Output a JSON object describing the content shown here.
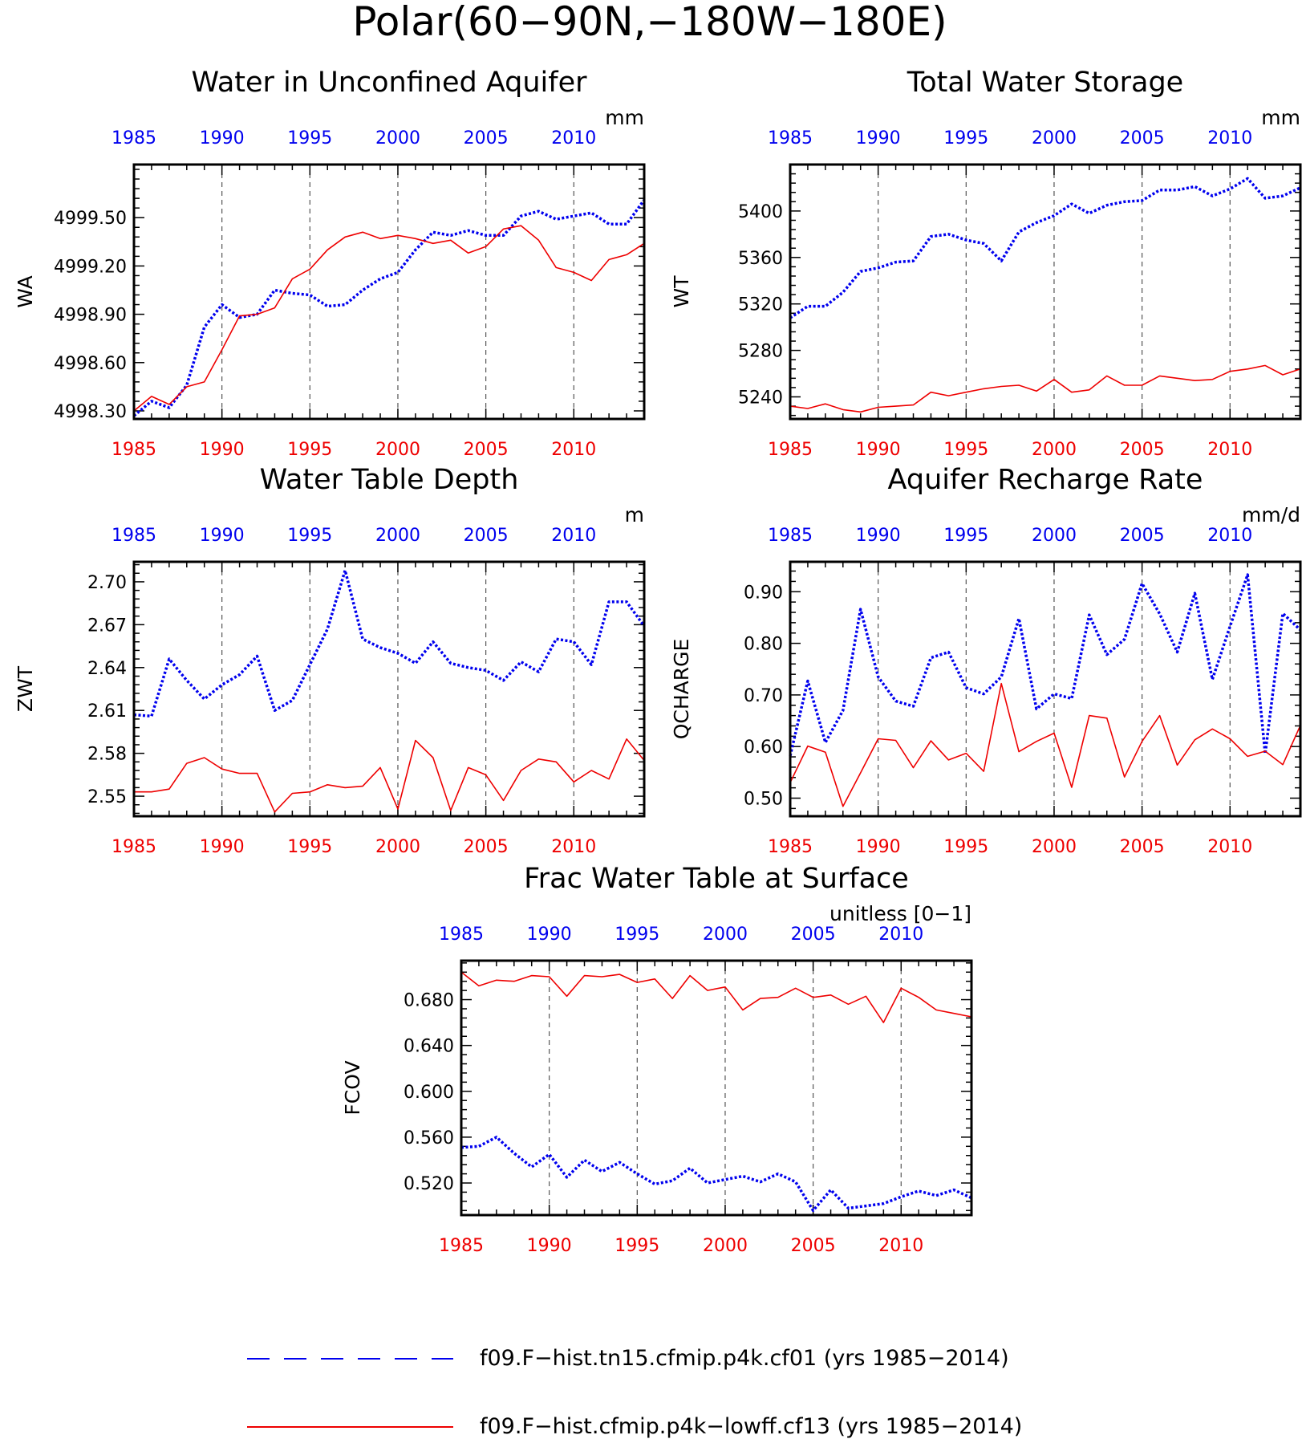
{
  "figure_title": "Polar(60−90N,−180W−180E)",
  "colors": {
    "series_blue": "#0000ee",
    "series_red": "#ee0000",
    "axis": "#000000",
    "grid": "#555555"
  },
  "legend": {
    "entries": [
      {
        "label": "f09.F−hist.tn15.cfmip.p4k.cf01 (yrs 1985−2014)",
        "color": "#0000ee",
        "style": "dashed"
      },
      {
        "label": "f09.F−hist.cfmip.p4k−lowff.cf13 (yrs 1985−2014)",
        "color": "#ee0000",
        "style": "solid"
      }
    ]
  },
  "chart_data": [
    {
      "type": "line",
      "title": "Water in Unconfined Aquifer",
      "units": "mm",
      "ylabel": "WA",
      "x": [
        1985,
        1986,
        1987,
        1988,
        1989,
        1990,
        1991,
        1992,
        1993,
        1994,
        1995,
        1996,
        1997,
        1998,
        1999,
        2000,
        2001,
        2002,
        2003,
        2004,
        2005,
        2006,
        2007,
        2008,
        2009,
        2010,
        2011,
        2012,
        2013,
        2014
      ],
      "xlim": [
        1985,
        2014
      ],
      "xticks": [
        1985,
        1990,
        1995,
        2000,
        2005,
        2010
      ],
      "xticklabels": [
        "1985",
        "1990",
        "1995",
        "2000",
        "2005",
        "2010"
      ],
      "ylim": [
        4998.25,
        4999.83
      ],
      "yticks": [
        4998.3,
        4998.6,
        4998.9,
        4999.2,
        4999.5
      ],
      "yticklabels": [
        "4998.30",
        "4998.60",
        "4998.90",
        "4999.20",
        "4999.50"
      ],
      "grid": "vertical-dashed",
      "series": [
        {
          "color": "#0000ee",
          "style": "dotted",
          "values": [
            4998.27,
            4998.36,
            4998.32,
            4998.46,
            4998.82,
            4998.96,
            4998.88,
            4998.9,
            4999.05,
            4999.03,
            4999.02,
            4998.95,
            4998.96,
            4999.05,
            4999.12,
            4999.16,
            4999.3,
            4999.41,
            4999.39,
            4999.42,
            4999.39,
            4999.39,
            4999.51,
            4999.54,
            4999.49,
            4999.51,
            4999.53,
            4999.46,
            4999.46,
            4999.61
          ]
        },
        {
          "color": "#ee0000",
          "style": "solid",
          "values": [
            4998.3,
            4998.39,
            4998.34,
            4998.45,
            4998.48,
            4998.68,
            4998.89,
            4998.9,
            4998.94,
            4999.12,
            4999.18,
            4999.3,
            4999.38,
            4999.41,
            4999.37,
            4999.39,
            4999.37,
            4999.34,
            4999.36,
            4999.28,
            4999.32,
            4999.43,
            4999.45,
            4999.36,
            4999.19,
            4999.16,
            4999.11,
            4999.24,
            4999.27,
            4999.34
          ]
        }
      ]
    },
    {
      "type": "line",
      "title": "Total Water Storage",
      "units": "mm",
      "ylabel": "WT",
      "x": [
        1985,
        1986,
        1987,
        1988,
        1989,
        1990,
        1991,
        1992,
        1993,
        1994,
        1995,
        1996,
        1997,
        1998,
        1999,
        2000,
        2001,
        2002,
        2003,
        2004,
        2005,
        2006,
        2007,
        2008,
        2009,
        2010,
        2011,
        2012,
        2013,
        2014
      ],
      "xlim": [
        1985,
        2014
      ],
      "xticks": [
        1985,
        1990,
        1995,
        2000,
        2005,
        2010
      ],
      "xticklabels": [
        "1985",
        "1990",
        "1995",
        "2000",
        "2005",
        "2010"
      ],
      "ylim": [
        5221,
        5440
      ],
      "yticks": [
        5240,
        5280,
        5320,
        5360,
        5400
      ],
      "yticklabels": [
        "5240",
        "5280",
        "5320",
        "5360",
        "5400"
      ],
      "grid": "vertical-dashed",
      "series": [
        {
          "color": "#0000ee",
          "style": "dotted",
          "values": [
            5308,
            5318,
            5318,
            5330,
            5348,
            5351,
            5356,
            5357,
            5378,
            5380,
            5375,
            5372,
            5357,
            5382,
            5390,
            5396,
            5406,
            5398,
            5405,
            5408,
            5409,
            5418,
            5418,
            5421,
            5413,
            5419,
            5428,
            5411,
            5413,
            5420
          ]
        },
        {
          "color": "#ee0000",
          "style": "solid",
          "values": [
            5232,
            5230,
            5234,
            5229,
            5227,
            5231,
            5232,
            5233,
            5244,
            5241,
            5244,
            5247,
            5249,
            5250,
            5245,
            5255,
            5244,
            5246,
            5258,
            5250,
            5250,
            5258,
            5256,
            5254,
            5255,
            5262,
            5264,
            5267,
            5259,
            5264
          ]
        }
      ]
    },
    {
      "type": "line",
      "title": "Water Table Depth",
      "units": "m",
      "ylabel": "ZWT",
      "x": [
        1985,
        1986,
        1987,
        1988,
        1989,
        1990,
        1991,
        1992,
        1993,
        1994,
        1995,
        1996,
        1997,
        1998,
        1999,
        2000,
        2001,
        2002,
        2003,
        2004,
        2005,
        2006,
        2007,
        2008,
        2009,
        2010,
        2011,
        2012,
        2013,
        2014
      ],
      "xlim": [
        1985,
        2014
      ],
      "xticks": [
        1985,
        1990,
        1995,
        2000,
        2005,
        2010
      ],
      "xticklabels": [
        "1985",
        "1990",
        "1995",
        "2000",
        "2005",
        "2010"
      ],
      "ylim": [
        2.536,
        2.714
      ],
      "yticks": [
        2.55,
        2.58,
        2.61,
        2.64,
        2.67,
        2.7
      ],
      "yticklabels": [
        "2.55",
        "2.58",
        "2.61",
        "2.64",
        "2.67",
        "2.70"
      ],
      "grid": "vertical-dashed",
      "series": [
        {
          "color": "#0000ee",
          "style": "dotted",
          "values": [
            2.607,
            2.606,
            2.646,
            2.631,
            2.618,
            2.628,
            2.635,
            2.648,
            2.61,
            2.617,
            2.642,
            2.667,
            2.708,
            2.66,
            2.654,
            2.65,
            2.643,
            2.658,
            2.643,
            2.64,
            2.638,
            2.631,
            2.644,
            2.637,
            2.66,
            2.658,
            2.642,
            2.686,
            2.686,
            2.669
          ]
        },
        {
          "color": "#ee0000",
          "style": "solid",
          "values": [
            2.553,
            2.553,
            2.555,
            2.573,
            2.577,
            2.569,
            2.566,
            2.566,
            2.539,
            2.552,
            2.553,
            2.558,
            2.556,
            2.557,
            2.57,
            2.541,
            2.589,
            2.577,
            2.54,
            2.57,
            2.565,
            2.547,
            2.568,
            2.576,
            2.574,
            2.56,
            2.568,
            2.562,
            2.59,
            2.575
          ]
        }
      ]
    },
    {
      "type": "line",
      "title": "Aquifer Recharge Rate",
      "units": "mm/d",
      "ylabel": "QCHARGE",
      "x": [
        1985,
        1986,
        1987,
        1988,
        1989,
        1990,
        1991,
        1992,
        1993,
        1994,
        1995,
        1996,
        1997,
        1998,
        1999,
        2000,
        2001,
        2002,
        2003,
        2004,
        2005,
        2006,
        2007,
        2008,
        2009,
        2010,
        2011,
        2012,
        2013,
        2014
      ],
      "xlim": [
        1985,
        2014
      ],
      "xticks": [
        1985,
        1990,
        1995,
        2000,
        2005,
        2010
      ],
      "xticklabels": [
        "1985",
        "1990",
        "1995",
        "2000",
        "2005",
        "2010"
      ],
      "ylim": [
        0.465,
        0.958
      ],
      "yticks": [
        0.5,
        0.6,
        0.7,
        0.8,
        0.9
      ],
      "yticklabels": [
        "0.50",
        "0.60",
        "0.70",
        "0.80",
        "0.90"
      ],
      "grid": "vertical-dashed",
      "series": [
        {
          "color": "#0000ee",
          "style": "dotted",
          "values": [
            0.582,
            0.727,
            0.608,
            0.67,
            0.866,
            0.735,
            0.688,
            0.678,
            0.772,
            0.783,
            0.714,
            0.702,
            0.735,
            0.848,
            0.673,
            0.702,
            0.693,
            0.855,
            0.778,
            0.808,
            0.916,
            0.857,
            0.783,
            0.897,
            0.73,
            0.833,
            0.933,
            0.586,
            0.858,
            0.826
          ]
        },
        {
          "color": "#ee0000",
          "style": "solid",
          "values": [
            0.53,
            0.601,
            0.589,
            0.484,
            0.549,
            0.615,
            0.612,
            0.559,
            0.611,
            0.574,
            0.587,
            0.552,
            0.722,
            0.59,
            0.61,
            0.626,
            0.521,
            0.66,
            0.655,
            0.541,
            0.61,
            0.66,
            0.564,
            0.613,
            0.634,
            0.615,
            0.581,
            0.591,
            0.565,
            0.641
          ]
        }
      ]
    },
    {
      "type": "line",
      "title": "Frac Water Table at Surface",
      "units": "unitless [0−1]",
      "ylabel": "FCOV",
      "x": [
        1985,
        1986,
        1987,
        1988,
        1989,
        1990,
        1991,
        1992,
        1993,
        1994,
        1995,
        1996,
        1997,
        1998,
        1999,
        2000,
        2001,
        2002,
        2003,
        2004,
        2005,
        2006,
        2007,
        2008,
        2009,
        2010,
        2011,
        2012,
        2013,
        2014
      ],
      "xlim": [
        1985,
        2014
      ],
      "xticks": [
        1985,
        1990,
        1995,
        2000,
        2005,
        2010
      ],
      "xticklabels": [
        "1985",
        "1990",
        "1995",
        "2000",
        "2005",
        "2010"
      ],
      "ylim": [
        0.492,
        0.714
      ],
      "yticks": [
        0.52,
        0.56,
        0.6,
        0.64,
        0.68
      ],
      "yticklabels": [
        "0.520",
        "0.560",
        "0.600",
        "0.640",
        "0.680"
      ],
      "grid": "vertical-dashed",
      "series": [
        {
          "color": "#0000ee",
          "style": "dotted",
          "values": [
            0.551,
            0.552,
            0.56,
            0.546,
            0.534,
            0.545,
            0.525,
            0.54,
            0.53,
            0.538,
            0.528,
            0.519,
            0.522,
            0.533,
            0.52,
            0.523,
            0.526,
            0.521,
            0.528,
            0.521,
            0.496,
            0.514,
            0.498,
            0.5,
            0.502,
            0.508,
            0.513,
            0.509,
            0.514,
            0.507
          ]
        },
        {
          "color": "#ee0000",
          "style": "solid",
          "values": [
            0.704,
            0.692,
            0.697,
            0.696,
            0.701,
            0.7,
            0.683,
            0.701,
            0.7,
            0.702,
            0.695,
            0.698,
            0.681,
            0.701,
            0.688,
            0.691,
            0.671,
            0.681,
            0.682,
            0.69,
            0.682,
            0.684,
            0.676,
            0.683,
            0.66,
            0.69,
            0.682,
            0.671,
            0.668,
            0.665
          ]
        }
      ]
    }
  ]
}
